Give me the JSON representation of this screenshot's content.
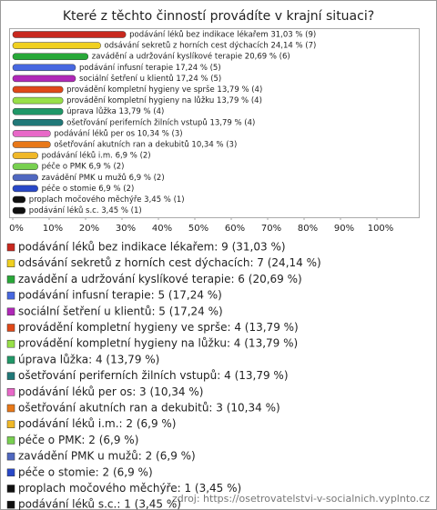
{
  "chart_data": {
    "type": "bar",
    "orientation": "horizontal",
    "title": "Které z těchto činností provádíte v krajní situaci?",
    "categories": [
      "podávání léků bez indikace lékařem",
      "odsávání sekretů z horních cest dýchacích",
      "zavádění a udržování kyslíkové terapie",
      "podávání infusní terapie",
      "sociální šetření u klientů",
      "provádění kompletní hygieny ve sprše",
      "provádění kompletní hygieny na lůžku",
      "úprava lůžka",
      "ošetřování periferních žilních vstupů",
      "podávání léků per os",
      "ošetřování akutních ran a dekubitů",
      "podávání léků i.m.",
      "péče o PMK",
      "zavádění PMK u mužů",
      "péče o stomie",
      "proplach močového měchýře",
      "podávání léků s.c."
    ],
    "values": [
      31.03,
      24.14,
      20.69,
      17.24,
      17.24,
      13.79,
      13.79,
      13.79,
      13.79,
      10.34,
      10.34,
      6.9,
      6.9,
      6.9,
      6.9,
      3.45,
      3.45
    ],
    "value_labels": [
      "podávání léků bez indikace lékařem 31,03 % (9)",
      "odsávání sekretů z horních cest dýchacích 24,14 % (7)",
      "zavádění a udržování kyslíkové terapie 20,69 % (6)",
      "podávání infusní terapie 17,24 % (5)",
      "sociální šetření u klientů 17,24 % (5)",
      "provádění kompletní hygieny ve sprše 13,79 % (4)",
      "provádění kompletní hygieny na lůžku 13,79 % (4)",
      "úprava lůžka 13,79 % (4)",
      "ošetřování periferních žilních vstupů 13,79 % (4)",
      "podávání léků per os 10,34 % (3)",
      "ošetřování akutních ran a dekubitů 10,34 % (3)",
      "podávání léků i.m. 6,9 % (2)",
      "péče o PMK 6,9 % (2)",
      "zavádění PMK u mužů 6,9 % (2)",
      "péče o stomie 6,9 % (2)",
      "proplach močového měchýře 3,45 % (1)",
      "podávání léků s.c. 3,45 % (1)"
    ],
    "legend_labels": [
      "podávání léků bez indikace lékařem: 9 (31,03 %)",
      "odsávání sekretů z horních cest dýchacích: 7 (24,14 %)",
      "zavádění a udržování kyslíkové terapie: 6 (20,69 %)",
      "podávání infusní terapie: 5 (17,24 %)",
      "sociální šetření u klientů: 5 (17,24 %)",
      "provádění kompletní hygieny ve sprše: 4 (13,79 %)",
      "provádění kompletní hygieny na lůžku: 4 (13,79 %)",
      "úprava lůžka: 4 (13,79 %)",
      "ošetřování periferních žilních vstupů: 4 (13,79 %)",
      "podávání léků per os: 3 (10,34 %)",
      "ošetřování akutních ran a dekubitů: 3 (10,34 %)",
      "podávání léků i.m.: 2 (6,9 %)",
      "péče o PMK: 2 (6,9 %)",
      "zavádění PMK u mužů: 2 (6,9 %)",
      "péče o stomie: 2 (6,9 %)",
      "proplach močového měchýře: 1 (3,45 %)",
      "podávání léků s.c.: 1 (3,45 %)"
    ],
    "colors": [
      "#c8281e",
      "#f0d020",
      "#28a838",
      "#4868e0",
      "#b028b8",
      "#e04818",
      "#98e048",
      "#209868",
      "#207878",
      "#e868c8",
      "#e87818",
      "#f0b828",
      "#78d050",
      "#5068c0",
      "#2848c8",
      "#101010",
      "#101010"
    ],
    "xlim": [
      0,
      110
    ],
    "xticks": [
      {
        "value": 0,
        "label": "0%"
      },
      {
        "value": 10,
        "label": "10%"
      },
      {
        "value": 20,
        "label": "20%"
      },
      {
        "value": 30,
        "label": "30%"
      },
      {
        "value": 40,
        "label": "40%"
      },
      {
        "value": 50,
        "label": "50%"
      },
      {
        "value": 60,
        "label": "60%"
      },
      {
        "value": 70,
        "label": "70%"
      },
      {
        "value": 80,
        "label": "80%"
      },
      {
        "value": 90,
        "label": "90%"
      },
      {
        "value": 100,
        "label": "100%"
      }
    ],
    "source": "zdroj: https://osetrovatelstvi-v-socialnich.vyplnto.cz"
  }
}
